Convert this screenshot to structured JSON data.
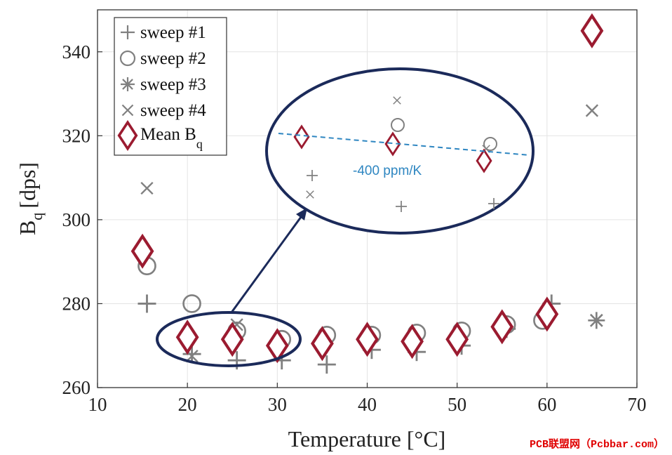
{
  "chart_data": {
    "type": "scatter",
    "title": "",
    "xlabel": "Temperature [°C]",
    "ylabel": {
      "main": "B",
      "sub": "q",
      "unit": "[dps]"
    },
    "xlim": [
      10,
      70
    ],
    "ylim": [
      260,
      350
    ],
    "xticks": [
      10,
      20,
      30,
      40,
      50,
      60,
      70
    ],
    "yticks": [
      260,
      280,
      300,
      320,
      340
    ],
    "grid": true,
    "legend_position": "top-left",
    "series": [
      {
        "name": "sweep #1",
        "marker": "plus",
        "color": "#808080",
        "points": [
          [
            15.5,
            280
          ],
          [
            20.5,
            268
          ],
          [
            25.5,
            266.5
          ],
          [
            30.5,
            266.5
          ],
          [
            35.5,
            265.5
          ],
          [
            40.5,
            269
          ],
          [
            45.5,
            268.5
          ],
          [
            50.5,
            270
          ],
          [
            55.5,
            274
          ],
          [
            60.5,
            280
          ]
        ]
      },
      {
        "name": "sweep #2",
        "marker": "circle",
        "color": "#808080",
        "points": [
          [
            15.5,
            289
          ],
          [
            20.5,
            280
          ],
          [
            25.5,
            273.5
          ],
          [
            30.5,
            271.5
          ],
          [
            35.5,
            272.5
          ],
          [
            40.5,
            272.5
          ],
          [
            45.5,
            273
          ],
          [
            50.5,
            273.5
          ],
          [
            55.5,
            275
          ],
          [
            59.5,
            276
          ]
        ]
      },
      {
        "name": "sweep #3",
        "marker": "asterisk",
        "color": "#808080",
        "points": [
          [
            65.5,
            276
          ]
        ]
      },
      {
        "name": "sweep #4",
        "marker": "cross",
        "color": "#808080",
        "points": [
          [
            15.5,
            307.5
          ],
          [
            20.5,
            267.5
          ],
          [
            25.5,
            275
          ],
          [
            65,
            326
          ]
        ]
      },
      {
        "name": "Mean B",
        "name_sub": "q",
        "marker": "diamond",
        "color": "#9b1b30",
        "points": [
          [
            15,
            292.5
          ],
          [
            20,
            272
          ],
          [
            25,
            271.5
          ],
          [
            30,
            270
          ],
          [
            35,
            270.5
          ],
          [
            40,
            271.5
          ],
          [
            45,
            271
          ],
          [
            50,
            271.5
          ],
          [
            55,
            274.5
          ],
          [
            60,
            277.5
          ],
          [
            65,
            345
          ]
        ]
      }
    ]
  },
  "annotation": {
    "slope_label": "-400 ppm/K",
    "slope_color": "#2e86c1",
    "outline_color": "#1b2a5a"
  },
  "watermark": {
    "text": "PCB联盟网（Pcbbar.com）",
    "color": "#e00000"
  }
}
